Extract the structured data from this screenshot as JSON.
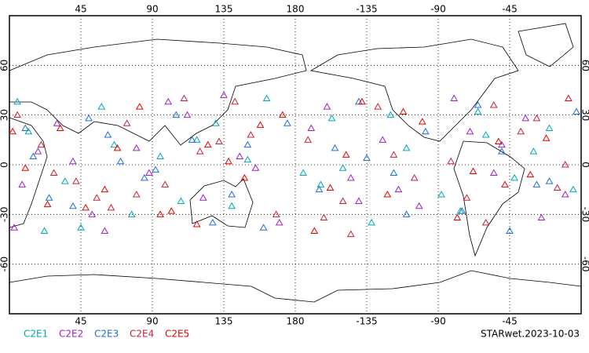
{
  "chart_data": {
    "type": "scatter",
    "footer": "STARwet.2023-10-03",
    "xlim": [
      0,
      360
    ],
    "ylim": [
      -90,
      90
    ],
    "xticks": [
      45,
      90,
      135,
      180,
      -135,
      -90,
      -45
    ],
    "yticks": [
      60,
      30,
      0,
      -30,
      -60
    ],
    "grid": true,
    "marker": "triangle",
    "series": [
      {
        "name": "C2E1",
        "color": "#00a8b8",
        "x": [
          12,
          35,
          58,
          77,
          95,
          118,
          140,
          162,
          185,
          203,
          228,
          250,
          272,
          295,
          318,
          340,
          22,
          66,
          108,
          150,
          196,
          240,
          284,
          330,
          45,
          130,
          210,
          300,
          355,
          5
        ],
        "y": [
          20,
          -10,
          35,
          -30,
          5,
          15,
          -25,
          40,
          -5,
          28,
          -35,
          10,
          -18,
          32,
          -8,
          22,
          -40,
          12,
          -22,
          3,
          -12,
          30,
          -28,
          8,
          -38,
          25,
          -2,
          18,
          -15,
          38
        ]
      },
      {
        "name": "C2E2",
        "color": "#a020c8",
        "x": [
          8,
          30,
          52,
          80,
          100,
          122,
          145,
          170,
          190,
          215,
          235,
          258,
          280,
          305,
          325,
          350,
          18,
          60,
          112,
          155,
          200,
          245,
          290,
          335,
          40,
          135,
          220,
          310,
          3,
          88
        ],
        "y": [
          -12,
          25,
          -30,
          10,
          38,
          -20,
          5,
          -35,
          22,
          -8,
          15,
          -25,
          40,
          -5,
          28,
          -18,
          8,
          -40,
          30,
          -2,
          35,
          -15,
          20,
          -32,
          2,
          42,
          -22,
          12,
          -38,
          -5
        ]
      },
      {
        "name": "C2E3",
        "color": "#1e6ed8",
        "x": [
          15,
          40,
          62,
          85,
          105,
          128,
          150,
          175,
          195,
          220,
          242,
          262,
          285,
          310,
          332,
          357,
          25,
          70,
          115,
          160,
          205,
          250,
          295,
          340,
          50,
          140,
          225,
          315,
          10,
          92
        ],
        "y": [
          5,
          -25,
          18,
          -8,
          30,
          -35,
          12,
          25,
          -15,
          38,
          -5,
          20,
          -28,
          8,
          -12,
          32,
          -20,
          2,
          15,
          -38,
          10,
          -30,
          36,
          -10,
          28,
          -18,
          4,
          -40,
          22,
          -3
        ]
      },
      {
        "name": "C2E4",
        "color": "#c8203c",
        "x": [
          5,
          28,
          55,
          74,
          98,
          120,
          142,
          168,
          188,
          210,
          232,
          255,
          278,
          300,
          322,
          345,
          20,
          64,
          110,
          152,
          198,
          242,
          288,
          332,
          42,
          132,
          215,
          305,
          350,
          80
        ],
        "y": [
          30,
          -5,
          -20,
          25,
          -12,
          8,
          38,
          -30,
          15,
          -22,
          35,
          -8,
          2,
          -35,
          20,
          -14,
          12,
          -26,
          40,
          18,
          -32,
          6,
          -20,
          28,
          -10,
          14,
          -42,
          36,
          0,
          -18
        ]
      },
      {
        "name": "C2E5",
        "color": "#e80000",
        "x": [
          10,
          32,
          60,
          82,
          102,
          125,
          148,
          172,
          192,
          212,
          238,
          260,
          282,
          308,
          328,
          352,
          24,
          68,
          118,
          158,
          202,
          248,
          292,
          338,
          48,
          138,
          222,
          312,
          2,
          95
        ],
        "y": [
          -2,
          22,
          -15,
          35,
          -28,
          12,
          -8,
          30,
          -40,
          6,
          -18,
          26,
          -32,
          14,
          -6,
          40,
          -24,
          10,
          -36,
          24,
          -14,
          32,
          -4,
          16,
          -26,
          2,
          38,
          -12,
          20,
          -30
        ]
      }
    ]
  }
}
